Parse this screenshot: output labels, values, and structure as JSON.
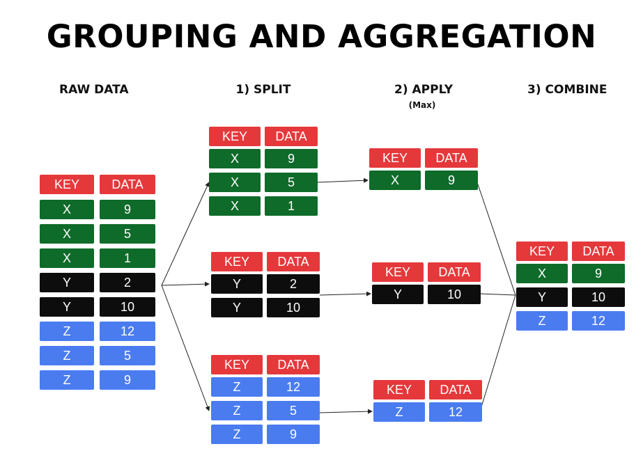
{
  "title": "GROUPING AND AGGREGATION",
  "steps": {
    "raw": "RAW DATA",
    "split": "1) SPLIT",
    "apply": "2) APPLY",
    "apply_sub": "(Max)",
    "combine": "3) COMBINE"
  },
  "colors": {
    "header": "#e5383b",
    "X": "#0e6b2a",
    "Y": "#0d0d0d",
    "Z": "#4a7cf0"
  },
  "headers": {
    "key": "KEY",
    "data": "DATA"
  },
  "tables": [
    {
      "id": "raw-data-table",
      "rows": [
        [
          "X",
          "9"
        ],
        [
          "X",
          "5"
        ],
        [
          "X",
          "1"
        ],
        [
          "Y",
          "2"
        ],
        [
          "Y",
          "10"
        ],
        [
          "Z",
          "12"
        ],
        [
          "Z",
          "5"
        ],
        [
          "Z",
          "9"
        ]
      ]
    },
    {
      "id": "split-x-table",
      "rows": [
        [
          "X",
          "9"
        ],
        [
          "X",
          "5"
        ],
        [
          "X",
          "1"
        ]
      ]
    },
    {
      "id": "split-y-table",
      "rows": [
        [
          "Y",
          "2"
        ],
        [
          "Y",
          "10"
        ]
      ]
    },
    {
      "id": "split-z-table",
      "rows": [
        [
          "Z",
          "12"
        ],
        [
          "Z",
          "5"
        ],
        [
          "Z",
          "9"
        ]
      ]
    },
    {
      "id": "apply-x-table",
      "rows": [
        [
          "X",
          "9"
        ]
      ]
    },
    {
      "id": "apply-y-table",
      "rows": [
        [
          "Y",
          "10"
        ]
      ]
    },
    {
      "id": "apply-z-table",
      "rows": [
        [
          "Z",
          "12"
        ]
      ]
    },
    {
      "id": "combine-table",
      "rows": [
        [
          "X",
          "9"
        ],
        [
          "Y",
          "10"
        ],
        [
          "Z",
          "12"
        ]
      ]
    }
  ]
}
